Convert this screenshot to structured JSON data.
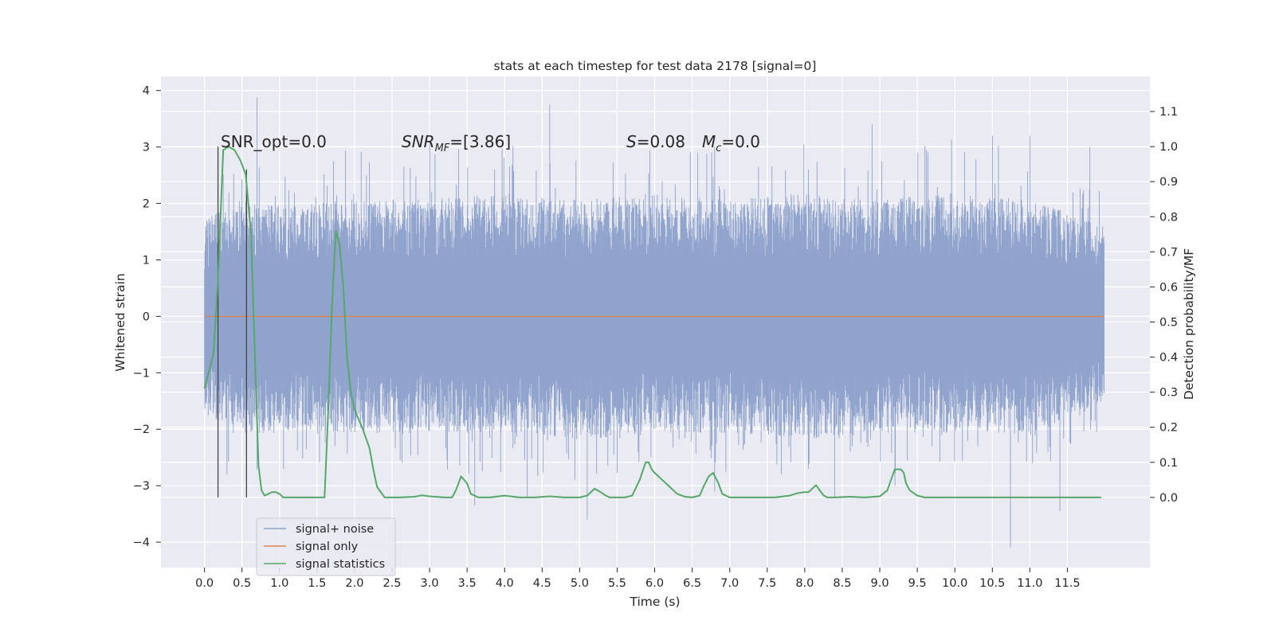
{
  "chart_data": {
    "type": "line",
    "title": "stats at each timestep for test data 2178 [signal=0]",
    "xlabel": "Time (s)",
    "ylabel": "Whitened strain",
    "y2label": "Detection probability/MF",
    "xlim": [
      -0.58,
      12.6
    ],
    "ylim": [
      -4.45,
      4.25
    ],
    "y2lim": [
      -0.2,
      1.2
    ],
    "x_ticks": [
      "0.0",
      "0.5",
      "1.0",
      "1.5",
      "2.0",
      "2.5",
      "3.0",
      "3.5",
      "4.0",
      "4.5",
      "5.0",
      "5.5",
      "6.0",
      "6.5",
      "7.0",
      "7.5",
      "8.0",
      "8.5",
      "9.0",
      "9.5",
      "10.0",
      "10.5",
      "11.0",
      "11.5"
    ],
    "y_ticks": [
      "4",
      "3",
      "2",
      "1",
      "0",
      "−1",
      "−2",
      "−3",
      "−4"
    ],
    "y2_ticks": [
      "1.1",
      "1.0",
      "0.9",
      "0.8",
      "0.7",
      "0.6",
      "0.5",
      "0.4",
      "0.3",
      "0.2",
      "0.1",
      "0.0"
    ],
    "grid": true,
    "legend_position": "lower-left",
    "annotations": {
      "snr_opt": "SNR_opt=0.0",
      "snr_mf_base": "SNR",
      "snr_mf_sub": "MF",
      "snr_mf_rest": "=[3.86]",
      "s_symbol": "S",
      "s_value": "=0.08",
      "mc_symbol": "M",
      "mc_sub": "c",
      "mc_value": "=0.0"
    },
    "series": [
      {
        "name": "signal+ noise",
        "color": "#8fa3cc",
        "x_range": [
          0.0,
          11.99
        ],
        "envelope": {
          "typical_upper": [
            [
              0.0,
              1.5
            ],
            [
              0.5,
              1.8
            ],
            [
              1.0,
              1.7
            ],
            [
              2.0,
              1.8
            ],
            [
              3.0,
              1.8
            ],
            [
              4.0,
              1.9
            ],
            [
              5.0,
              1.8
            ],
            [
              6.0,
              1.9
            ],
            [
              7.0,
              1.8
            ],
            [
              8.0,
              1.9
            ],
            [
              9.0,
              1.8
            ],
            [
              10.0,
              1.9
            ],
            [
              11.0,
              1.8
            ],
            [
              11.99,
              1.4
            ]
          ],
          "typical_lower": [
            [
              0.0,
              -1.5
            ],
            [
              0.5,
              -1.8
            ],
            [
              1.0,
              -1.8
            ],
            [
              2.0,
              -1.8
            ],
            [
              3.0,
              -1.8
            ],
            [
              4.0,
              -1.8
            ],
            [
              5.0,
              -1.9
            ],
            [
              6.0,
              -1.8
            ],
            [
              7.0,
              -1.8
            ],
            [
              8.0,
              -1.9
            ],
            [
              9.0,
              -1.8
            ],
            [
              10.0,
              -1.8
            ],
            [
              11.0,
              -1.8
            ],
            [
              11.99,
              -1.3
            ]
          ],
          "peaks_max": [
            [
              0.7,
              3.88
            ],
            [
              4.6,
              3.75
            ],
            [
              3.0,
              3.1
            ],
            [
              6.8,
              3.0
            ],
            [
              8.9,
              3.4
            ],
            [
              10.5,
              3.2
            ],
            [
              11.0,
              3.2
            ],
            [
              11.8,
              3.0
            ]
          ],
          "peaks_min": [
            [
              10.74,
              -4.1
            ],
            [
              11.4,
              -3.45
            ],
            [
              5.1,
              -3.6
            ],
            [
              3.6,
              -3.35
            ],
            [
              8.4,
              -3.2
            ],
            [
              0.3,
              -2.8
            ],
            [
              4.3,
              -3.2
            ],
            [
              6.8,
              -3.1
            ],
            [
              9.2,
              -3.0
            ],
            [
              12.0,
              -2.3
            ]
          ]
        }
      },
      {
        "name": "signal only",
        "color": "#dd8452",
        "x": [
          0.0,
          11.99
        ],
        "y": [
          0.0,
          0.0
        ]
      },
      {
        "name": "signal statistics",
        "color": "#55a868",
        "axis": "right",
        "x": [
          0.0,
          0.12,
          0.18,
          0.25,
          0.32,
          0.4,
          0.48,
          0.55,
          0.62,
          0.68,
          0.72,
          0.76,
          0.8,
          0.85,
          0.9,
          0.95,
          1.0,
          1.05,
          1.1,
          1.2,
          1.4,
          1.6,
          1.65,
          1.7,
          1.75,
          1.8,
          1.85,
          1.9,
          1.95,
          2.0,
          2.1,
          2.15,
          2.2,
          2.25,
          2.3,
          2.4,
          2.6,
          2.8,
          2.9,
          3.0,
          3.2,
          3.3,
          3.35,
          3.42,
          3.5,
          3.55,
          3.65,
          3.8,
          4.0,
          4.2,
          4.4,
          4.6,
          4.8,
          5.0,
          5.1,
          5.2,
          5.28,
          5.35,
          5.4,
          5.5,
          5.6,
          5.7,
          5.8,
          5.88,
          5.92,
          5.96,
          6.0,
          6.05,
          6.1,
          6.2,
          6.3,
          6.4,
          6.5,
          6.6,
          6.65,
          6.72,
          6.78,
          6.85,
          6.9,
          7.0,
          7.2,
          7.4,
          7.6,
          7.8,
          7.9,
          8.0,
          8.05,
          8.1,
          8.15,
          8.2,
          8.25,
          8.3,
          8.4,
          8.6,
          8.8,
          9.0,
          9.1,
          9.15,
          9.2,
          9.28,
          9.32,
          9.35,
          9.4,
          9.5,
          9.6,
          9.8,
          10.0,
          10.5,
          11.0,
          11.5,
          11.95
        ],
        "y": [
          0.31,
          0.41,
          0.62,
          0.99,
          1.0,
          0.99,
          0.96,
          0.92,
          0.75,
          0.35,
          0.09,
          0.02,
          0.005,
          0.01,
          0.015,
          0.015,
          0.01,
          0.0,
          0.0,
          0.0,
          0.0,
          0.0,
          0.25,
          0.55,
          0.76,
          0.72,
          0.6,
          0.4,
          0.3,
          0.25,
          0.2,
          0.17,
          0.14,
          0.08,
          0.03,
          0.0,
          0.0,
          0.002,
          0.006,
          0.003,
          0.0,
          0.0,
          0.02,
          0.06,
          0.04,
          0.01,
          0.0,
          0.0,
          0.005,
          0.0,
          0.0,
          0.003,
          0.0,
          0.0,
          0.005,
          0.025,
          0.015,
          0.005,
          0.0,
          0.0,
          0.0,
          0.005,
          0.05,
          0.1,
          0.1,
          0.08,
          0.07,
          0.06,
          0.05,
          0.03,
          0.01,
          0.002,
          0.0,
          0.005,
          0.03,
          0.06,
          0.07,
          0.04,
          0.01,
          0.0,
          0.0,
          0.0,
          0.0,
          0.005,
          0.012,
          0.015,
          0.015,
          0.025,
          0.035,
          0.02,
          0.006,
          0.0,
          0.0,
          0.002,
          0.0,
          0.003,
          0.02,
          0.05,
          0.08,
          0.08,
          0.07,
          0.04,
          0.02,
          0.005,
          0.0,
          0.0,
          0.0,
          0.0,
          0.0,
          0.0,
          0.0
        ]
      }
    ],
    "vertical_lines": [
      {
        "x": 0.18,
        "y_top_right": 1.0,
        "color": "#444444"
      },
      {
        "x": 0.56,
        "y_top_right": 0.935,
        "color": "#444444"
      }
    ]
  }
}
